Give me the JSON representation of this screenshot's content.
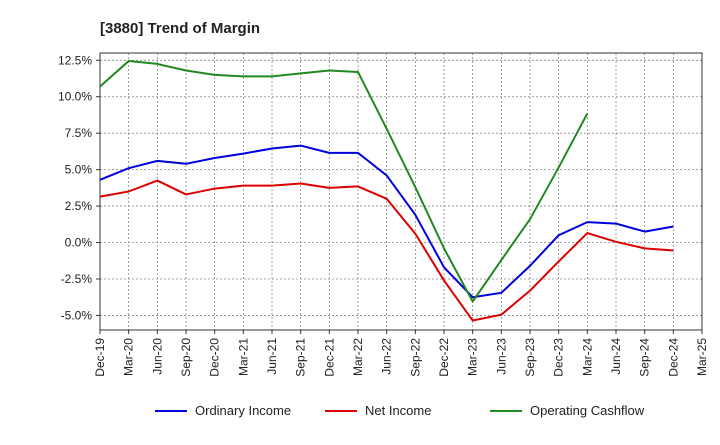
{
  "chart_data": {
    "type": "line",
    "title": "[3880]  Trend of Margin",
    "xlabel": "",
    "ylabel": "",
    "ylim": [
      -6.0,
      13.0
    ],
    "y_ticks": [
      "12.5%",
      "10.0%",
      "7.5%",
      "5.0%",
      "2.5%",
      "0.0%",
      "-2.5%",
      "-5.0%"
    ],
    "y_tick_values": [
      12.5,
      10.0,
      7.5,
      5.0,
      2.5,
      0.0,
      -2.5,
      -5.0
    ],
    "categories": [
      "Dec-19",
      "Mar-20",
      "Jun-20",
      "Sep-20",
      "Dec-20",
      "Mar-21",
      "Jun-21",
      "Sep-21",
      "Dec-21",
      "Mar-22",
      "Jun-22",
      "Sep-22",
      "Dec-22",
      "Mar-23",
      "Jun-23",
      "Sep-23",
      "Dec-23",
      "Mar-24",
      "Jun-24",
      "Sep-24",
      "Dec-24",
      "Mar-25"
    ],
    "grid": true,
    "legend_position": "bottom",
    "series": [
      {
        "name": "Ordinary Income",
        "color": "#0000dd",
        "values": [
          4.3,
          5.1,
          5.6,
          5.4,
          5.8,
          6.1,
          6.45,
          6.65,
          6.15,
          6.15,
          4.6,
          1.9,
          -1.7,
          -3.75,
          -3.45,
          -1.6,
          0.5,
          1.4,
          1.3,
          0.75,
          1.1,
          null
        ]
      },
      {
        "name": "Net Income",
        "color": "#dd0000",
        "values": [
          3.15,
          3.5,
          4.25,
          3.3,
          3.7,
          3.9,
          3.9,
          4.05,
          3.75,
          3.85,
          3.0,
          0.6,
          -2.6,
          -5.35,
          -4.95,
          -3.3,
          -1.3,
          0.65,
          0.05,
          -0.4,
          -0.55,
          null
        ]
      },
      {
        "name": "Operating Cashflow",
        "color": "#228822",
        "values": [
          10.7,
          12.45,
          12.25,
          11.8,
          11.5,
          11.4,
          11.4,
          11.6,
          11.8,
          11.7,
          7.8,
          3.8,
          -0.4,
          -4.05,
          -1.2,
          1.6,
          5.15,
          8.85,
          null,
          null,
          null,
          null
        ]
      }
    ]
  }
}
